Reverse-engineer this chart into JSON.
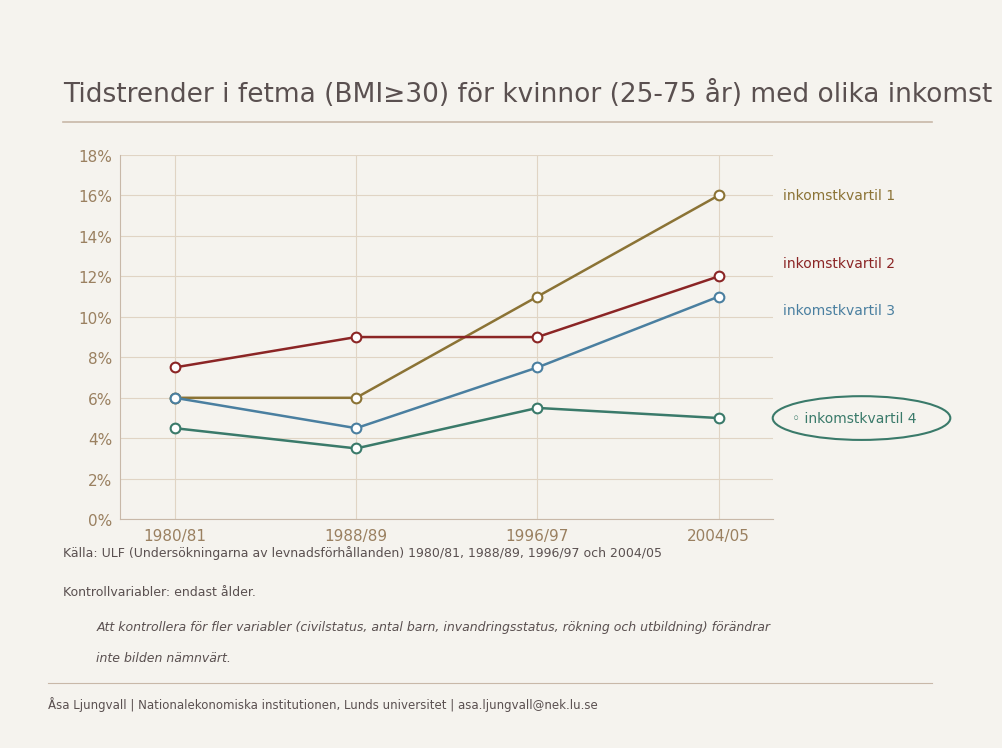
{
  "title": "Tidstrender i fetma (BMI≥30) för kvinnor (25-75 år) med olika inkomst",
  "x_labels": [
    "1980/81",
    "1988/89",
    "1996/97",
    "2004/05"
  ],
  "x_values": [
    0,
    1,
    2,
    3
  ],
  "series": [
    {
      "label": "inkomstkvartil 1",
      "values": [
        6,
        6,
        11,
        16
      ],
      "color": "#8B7335",
      "marker": "o"
    },
    {
      "label": "inkomstkvartil 2",
      "values": [
        7.5,
        9,
        9,
        12
      ],
      "color": "#8B2525",
      "marker": "o"
    },
    {
      "label": "inkomstkvartil 3",
      "values": [
        6,
        4.5,
        7.5,
        11
      ],
      "color": "#4A7FA0",
      "marker": "o"
    },
    {
      "label": "inkomstkvartil 4",
      "values": [
        4.5,
        3.5,
        5.5,
        5
      ],
      "color": "#3A7A6A",
      "marker": "o"
    }
  ],
  "ylim": [
    0,
    18
  ],
  "yticks": [
    0,
    2,
    4,
    6,
    8,
    10,
    12,
    14,
    16,
    18
  ],
  "ytick_labels": [
    "0%",
    "2%",
    "4%",
    "6%",
    "8%",
    "10%",
    "12%",
    "14%",
    "16%",
    "18%"
  ],
  "title_color": "#5A5050",
  "axis_color": "#C8B8A8",
  "grid_color": "#E0D4C4",
  "tick_color": "#9A8060",
  "footnote1": "Källa: ULF (Undersökningarna av levnadsförhållanden) 1980/81, 1988/89, 1996/97 och 2004/05",
  "footnote2": "Kontrollvariabler: endast ålder.",
  "footnote3": "Att kontrollera för fler variabler (civilstatus, antal barn, invandringsstatus, rökning och utbildning) förändrar",
  "footnote4": "inte bilden nämnvärt.",
  "footer": "Åsa Ljungvall | Nationalekonomiska institutionen, Lunds universitet | asa.ljungvall@nek.lu.se",
  "background_color": "#F5F3EE"
}
